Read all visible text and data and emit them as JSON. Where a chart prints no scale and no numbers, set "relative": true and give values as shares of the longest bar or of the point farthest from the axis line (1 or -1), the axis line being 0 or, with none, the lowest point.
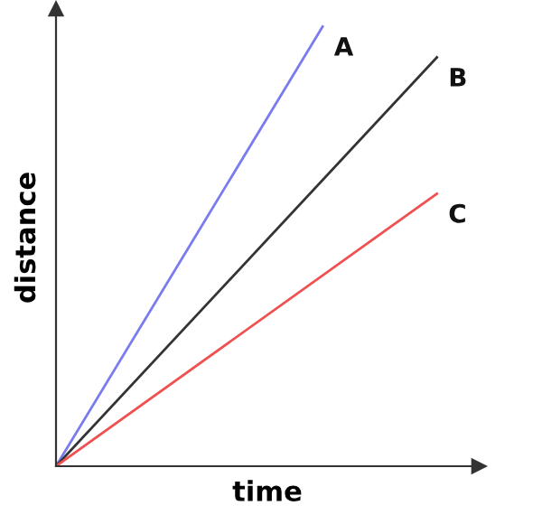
{
  "chart_data": {
    "type": "line",
    "relative": true,
    "xlabel": "time",
    "ylabel": "distance",
    "legend": false,
    "marker": "none",
    "line_style": "solid",
    "categories": [
      null,
      null,
      null,
      null,
      null,
      null,
      null,
      null,
      null,
      null,
      null
    ],
    "series": [
      {
        "name": "A",
        "color": "#7b7bf0",
        "values": [
          0,
          null,
          null,
          null,
          null,
          null,
          null,
          1,
          null,
          null,
          null
        ]
      },
      {
        "name": "B",
        "color": "#333333",
        "values": [
          0,
          null,
          null,
          null,
          null,
          null,
          null,
          null,
          null,
          null,
          0.93
        ]
      },
      {
        "name": "C",
        "color": "#f05050",
        "values": [
          0,
          null,
          null,
          null,
          null,
          null,
          null,
          null,
          null,
          null,
          0.62
        ]
      }
    ]
  }
}
